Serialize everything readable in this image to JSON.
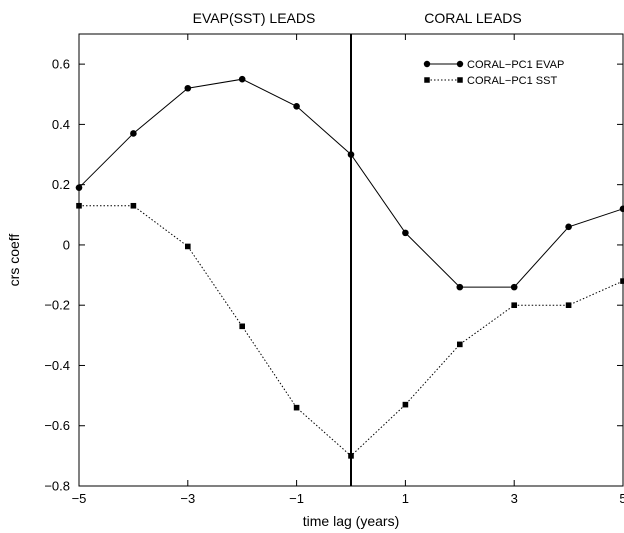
{
  "chart_data": {
    "type": "line",
    "top_labels": {
      "left": "EVAP(SST) LEADS",
      "right": "CORAL LEADS"
    },
    "xlabel": "time lag (years)",
    "ylabel": "crs coeff",
    "xlim": [
      -5,
      5
    ],
    "ylim": [
      -0.8,
      0.7
    ],
    "xticks": [
      -5,
      -3,
      -1,
      1,
      3,
      5
    ],
    "xtick_labels": [
      "−5",
      "−3",
      "−1",
      "1",
      "3",
      "5"
    ],
    "yticks": [
      -0.8,
      -0.6,
      -0.4,
      -0.2,
      0,
      0.2,
      0.4,
      0.6
    ],
    "ytick_labels": [
      "−0.8",
      "−0.6",
      "−0.4",
      "−0.2",
      "0",
      "0.2",
      "0.4",
      "0.6"
    ],
    "vertical_line_x": 0,
    "grid": false,
    "legend_position": "top-right",
    "x": [
      -5,
      -4,
      -3,
      -2,
      -1,
      0,
      1,
      2,
      3,
      4,
      5
    ],
    "series": [
      {
        "name": "CORAL−PC1 EVAP",
        "marker": "circle",
        "line_style": "solid",
        "color": "#000000",
        "values": [
          0.19,
          0.37,
          0.52,
          0.55,
          0.46,
          0.3,
          0.04,
          -0.14,
          -0.14,
          0.06,
          0.12
        ]
      },
      {
        "name": "CORAL−PC1 SST",
        "marker": "square",
        "line_style": "dotted",
        "color": "#000000",
        "values": [
          0.13,
          0.13,
          -0.005,
          -0.27,
          -0.54,
          -0.7,
          -0.53,
          -0.33,
          -0.2,
          -0.2,
          -0.12
        ]
      }
    ]
  }
}
